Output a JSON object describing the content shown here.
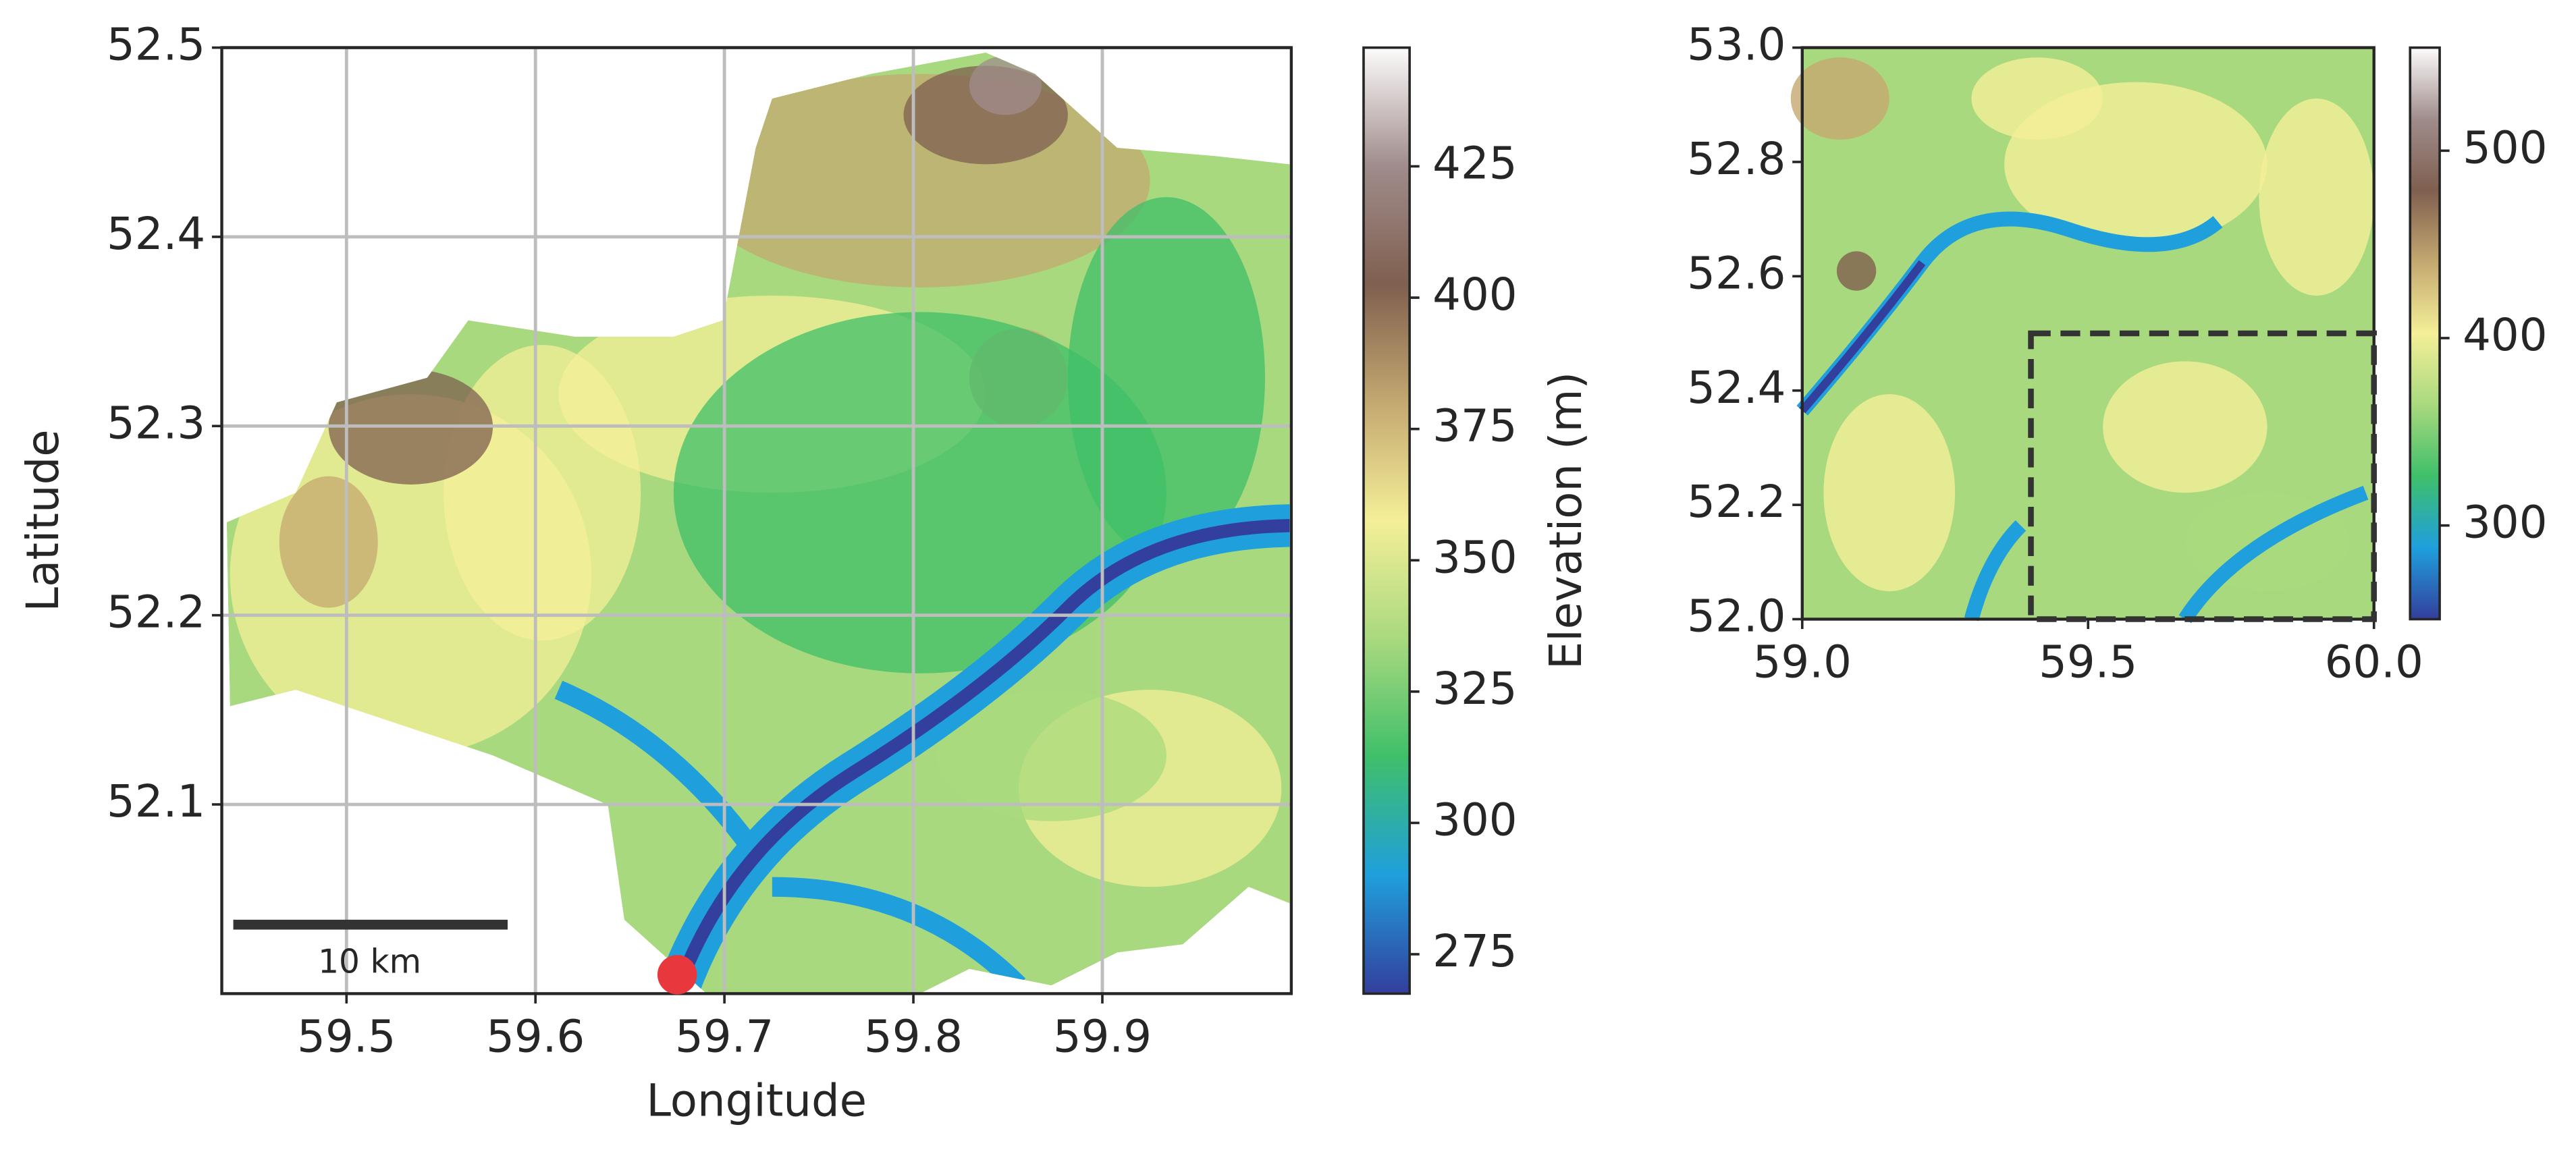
{
  "chart_data": [
    {
      "type": "map",
      "xlabel": "Longitude",
      "ylabel": "Latitude",
      "xlim": [
        59.434,
        60.0
      ],
      "ylim": [
        52.0,
        52.5
      ],
      "xticks": [
        59.5,
        59.6,
        59.7,
        59.8,
        59.9
      ],
      "yticks": [
        52.1,
        52.2,
        52.3,
        52.4,
        52.5
      ],
      "grid": true,
      "colorbar_label": "Elevation (m)",
      "clim": [
        267.5,
        447.6
      ],
      "cticks": [
        275,
        300,
        325,
        350,
        375,
        400,
        425
      ],
      "cmap": [
        "#333f9c",
        "#1f9fdc",
        "#3fbf6a",
        "#a9d97e",
        "#f4ef98",
        "#c4a870",
        "#7f5f4f",
        "#a08c8c",
        "#fdfbfb"
      ],
      "scale_bar_label": "10 km",
      "outlet": {
        "x": 59.675,
        "y": 52.01,
        "color": "#e8383d"
      }
    },
    {
      "type": "map",
      "xlim": [
        59.0,
        60.0
      ],
      "ylim": [
        52.0,
        53.0
      ],
      "xticks": [
        {
          "value": 59,
          "label": "59.0"
        },
        59.5,
        {
          "value": 60,
          "label": "60.0"
        }
      ],
      "yticks": [
        {
          "value": 52,
          "label": "52.0"
        },
        52.2,
        52.4,
        52.6,
        52.8,
        {
          "value": 53,
          "label": "53.0"
        }
      ],
      "grid": false,
      "clim": [
        250,
        555
      ],
      "cticks": [
        300,
        400,
        500
      ],
      "cmap": [
        "#333f9c",
        "#1f9fdc",
        "#3fbf6a",
        "#a9d97e",
        "#f4ef98",
        "#c4a870",
        "#7f5f4f",
        "#a08c8c",
        "#fdfbfb"
      ],
      "inset_box": {
        "x": [
          59.4,
          60.0
        ],
        "y": [
          52.0,
          52.5
        ]
      }
    }
  ]
}
